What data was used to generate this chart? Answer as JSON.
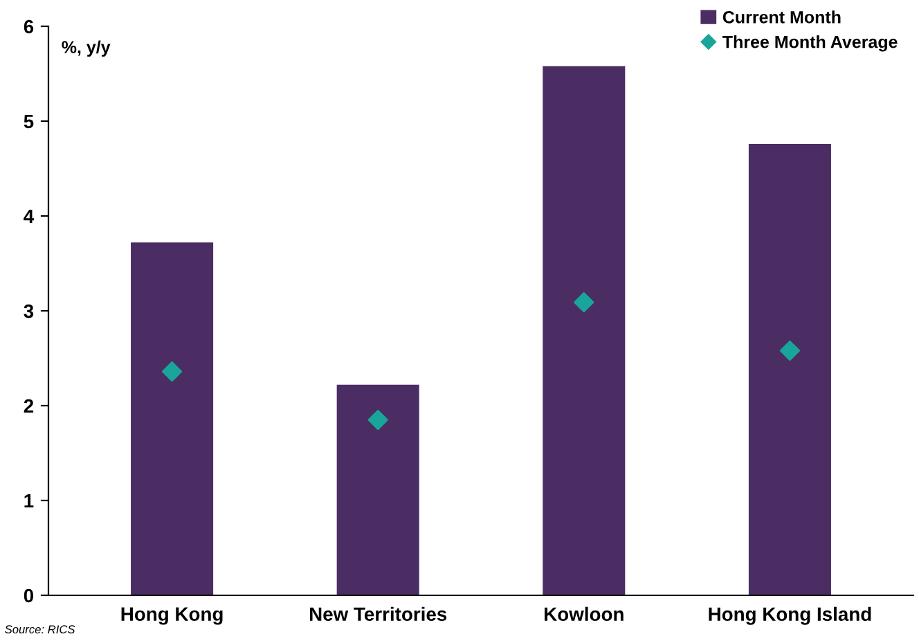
{
  "chart_data": {
    "type": "bar",
    "ylabel": "%, y/y",
    "categories": [
      "Hong Kong",
      "New Territories",
      "Kowloon",
      "Hong Kong Island"
    ],
    "series": [
      {
        "name": "Current Month",
        "color": "#4b2d63",
        "values": [
          3.72,
          2.22,
          5.58,
          4.76
        ]
      },
      {
        "name": "Three Month Average",
        "type": "scatter",
        "color": "#1aa59a",
        "marker": "diamond",
        "x": [
          "Hong Kong",
          "New Territories",
          "Kowloon",
          "Hong Kong Island"
        ],
        "values": [
          2.36,
          1.85,
          3.09,
          2.58
        ]
      }
    ],
    "ylim": [
      0,
      6
    ],
    "yticks": [
      0,
      1,
      2,
      3,
      4,
      5,
      6
    ],
    "grid": false,
    "legend": "top right",
    "annotations": [
      "Source: RICS"
    ]
  }
}
